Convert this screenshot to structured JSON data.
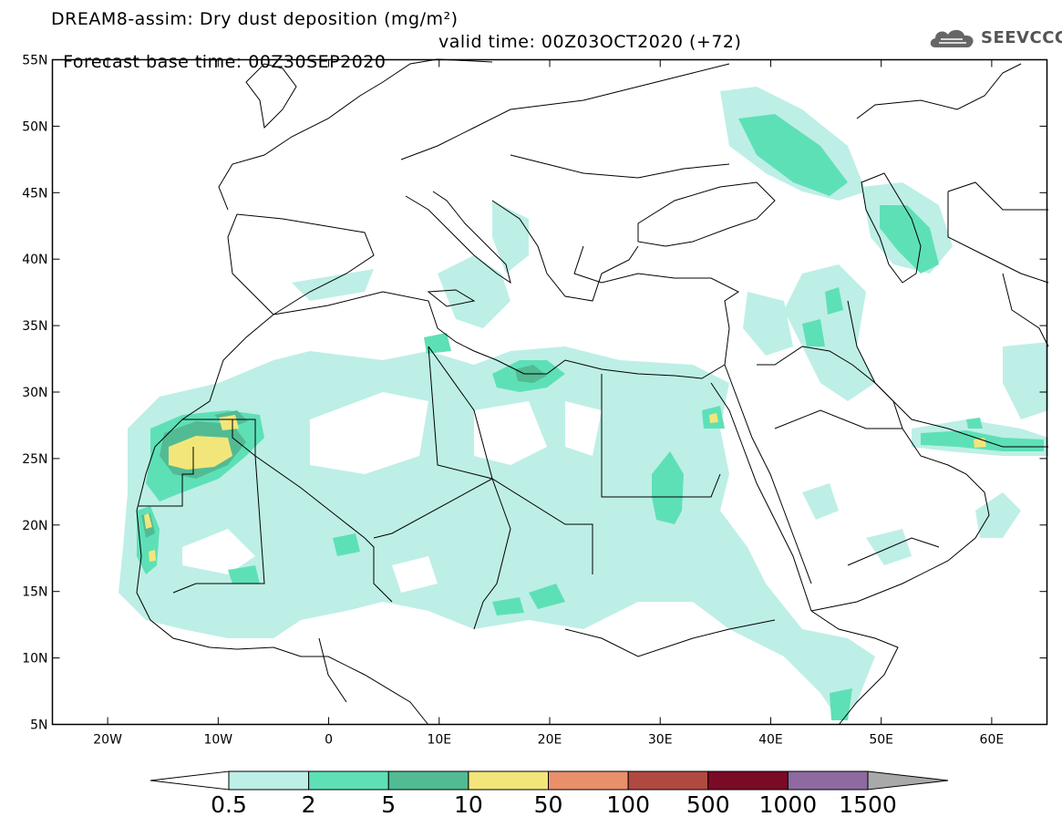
{
  "header": {
    "line1": "DREAM8-assim: Dry dust deposition (mg/m²)",
    "line2_left": "Forecast base time: 00Z30SEP2020",
    "line2_right": "valid time: 00Z03OCT2020 (+72)"
  },
  "logo": {
    "text": "SEEVCCC",
    "icon": "cloud-icon"
  },
  "map": {
    "lon_range": [
      -25,
      65
    ],
    "lat_range": [
      5,
      55
    ],
    "x_ticks": [
      "20W",
      "10W",
      "0",
      "10E",
      "20E",
      "30E",
      "40E",
      "50E",
      "60E"
    ],
    "y_ticks": [
      "55N",
      "50N",
      "45N",
      "40N",
      "35N",
      "30N",
      "25N",
      "20N",
      "15N",
      "10N",
      "5N"
    ]
  },
  "colorbar": {
    "labels": [
      "0.5",
      "2",
      "5",
      "10",
      "50",
      "100",
      "500",
      "1000",
      "1500"
    ],
    "colors": [
      "#bdefe6",
      "#5ee0b7",
      "#52bb94",
      "#f2e67a",
      "#e9906a",
      "#b04a40",
      "#7a0a26",
      "#8e6aa0"
    ],
    "under_color": "#ffffff",
    "over_color": "#a9a9a9"
  },
  "chart_data": {
    "type": "heatmap",
    "title": "DREAM8-assim: Dry dust deposition (mg/m²)",
    "units": "mg/m²",
    "levels": [
      0.5,
      2,
      5,
      10,
      50,
      100,
      500,
      1000,
      1500
    ],
    "xlim": [
      -25,
      65
    ],
    "ylim": [
      5,
      55
    ],
    "max_areas": [
      {
        "region": "Western Sahara / southern Morocco",
        "class": "10-50"
      },
      {
        "region": "Mauritania coast",
        "class": "10-50"
      },
      {
        "region": "Gulf of Aqaba",
        "class": "10-50"
      },
      {
        "region": "Gulf of Oman",
        "class": "10-50"
      }
    ]
  }
}
